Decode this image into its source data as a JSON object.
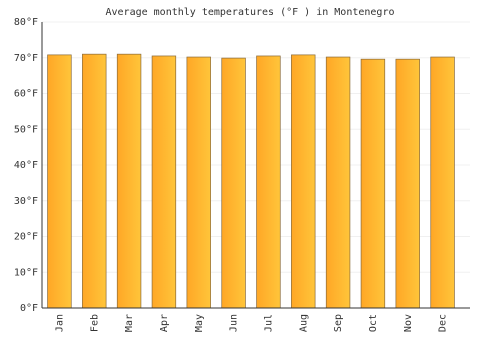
{
  "chart_data": {
    "type": "bar",
    "title": "Average monthly temperatures (°F ) in Montenegro",
    "categories": [
      "Jan",
      "Feb",
      "Mar",
      "Apr",
      "May",
      "Jun",
      "Jul",
      "Aug",
      "Sep",
      "Oct",
      "Nov",
      "Dec"
    ],
    "values": [
      70.8,
      71.0,
      71.0,
      70.5,
      70.2,
      69.9,
      70.5,
      70.8,
      70.2,
      69.6,
      69.6,
      70.2
    ],
    "color": "#ffa726",
    "ylim": [
      0,
      80
    ],
    "yticks": [
      {
        "value": 0,
        "label": "0°F"
      },
      {
        "value": 10,
        "label": "10°F"
      },
      {
        "value": 20,
        "label": "20°F"
      },
      {
        "value": 30,
        "label": "30°F"
      },
      {
        "value": 40,
        "label": "40°F"
      },
      {
        "value": 50,
        "label": "50°F"
      },
      {
        "value": 60,
        "label": "60°F"
      },
      {
        "value": 70,
        "label": "70°F"
      },
      {
        "value": 80,
        "label": "80°F"
      }
    ],
    "grid": true
  }
}
